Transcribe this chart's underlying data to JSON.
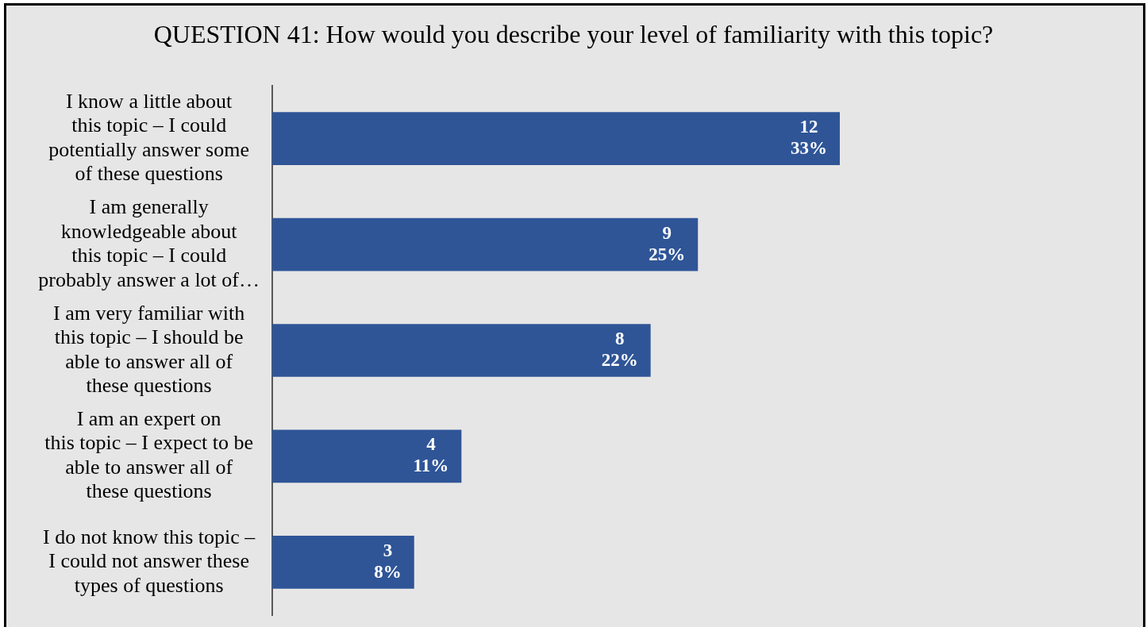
{
  "chart_data": {
    "type": "bar",
    "orientation": "horizontal",
    "title": "QUESTION 41: How would you describe your level of familiarity with this topic?",
    "categories": [
      "I know a little about\nthis topic – I could\npotentially answer some\nof these questions",
      "I am generally\nknowledgeable about\nthis topic – I could\nprobably answer a lot of…",
      "I am very familiar with\nthis topic – I should be\nable to answer all of\nthese questions",
      "I am an expert on\nthis topic – I expect to be\nable to answer all of\nthese questions",
      "I do not know this topic –\nI could not answer these\ntypes of questions"
    ],
    "values": [
      12,
      9,
      8,
      4,
      3
    ],
    "color": "#2f5597",
    "value_labels": [
      "12\n33%",
      "9\n25%",
      "8\n22%",
      "4\n11%",
      "3\n8%"
    ],
    "tick_labels": "y"
  }
}
